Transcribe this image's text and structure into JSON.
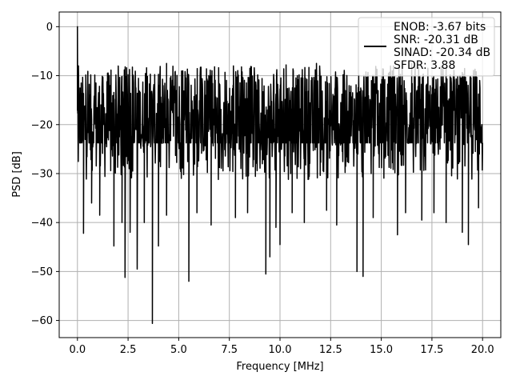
{
  "chart_data": {
    "type": "line",
    "xlabel": "Frequency [MHz]",
    "ylabel": "PSD [dB]",
    "xlim": [
      -0.9,
      20.9
    ],
    "ylim": [
      -63.5,
      3.0
    ],
    "x_ticks": [
      0.0,
      2.5,
      5.0,
      7.5,
      10.0,
      12.5,
      15.0,
      17.5,
      20.0
    ],
    "x_tick_labels": [
      "0.0",
      "2.5",
      "5.0",
      "7.5",
      "10.0",
      "12.5",
      "15.0",
      "17.5",
      "20.0"
    ],
    "y_ticks": [
      0,
      -10,
      -20,
      -30,
      -40,
      -50,
      -60
    ],
    "y_tick_labels": [
      "0",
      "−10",
      "−20",
      "−30",
      "−40",
      "−50",
      "−60"
    ],
    "grid": true,
    "legend_position": "top-right",
    "series_color": "#000000",
    "legend_lines": [
      "ENOB: -3.67 bits",
      "SNR: -20.31 dB",
      "SINAD: -20.34 dB",
      "SFDR: 3.88"
    ],
    "series": [
      {
        "x_start": 0.0,
        "x_end": 20.0,
        "noise_floor_mean": -20.5,
        "noise_upper_envelope": -10.5,
        "noise_lower_envelope": -32.0,
        "peaks": [
          {
            "x": 0.0,
            "y": 0.0
          },
          {
            "x": 0.05,
            "y": -8.0
          },
          {
            "x": 4.4,
            "y": -7.5
          },
          {
            "x": 7.7,
            "y": -8.0
          },
          {
            "x": 10.3,
            "y": -7.8
          },
          {
            "x": 11.8,
            "y": -7.5
          },
          {
            "x": 15.6,
            "y": -8.0
          },
          {
            "x": 16.5,
            "y": -7.5
          }
        ],
        "dips": [
          {
            "x": 0.3,
            "y": -42.2
          },
          {
            "x": 0.7,
            "y": -36.0
          },
          {
            "x": 1.1,
            "y": -38.5
          },
          {
            "x": 1.8,
            "y": -44.8
          },
          {
            "x": 2.2,
            "y": -40.0
          },
          {
            "x": 2.35,
            "y": -51.2
          },
          {
            "x": 2.6,
            "y": -42.0
          },
          {
            "x": 2.95,
            "y": -49.5
          },
          {
            "x": 3.3,
            "y": -40.0
          },
          {
            "x": 3.7,
            "y": -60.6
          },
          {
            "x": 4.0,
            "y": -44.8
          },
          {
            "x": 4.4,
            "y": -38.5
          },
          {
            "x": 5.5,
            "y": -52.0
          },
          {
            "x": 5.9,
            "y": -38.0
          },
          {
            "x": 6.6,
            "y": -40.5
          },
          {
            "x": 7.8,
            "y": -39.0
          },
          {
            "x": 8.4,
            "y": -38.0
          },
          {
            "x": 9.3,
            "y": -50.5
          },
          {
            "x": 9.5,
            "y": -47.0
          },
          {
            "x": 9.8,
            "y": -41.0
          },
          {
            "x": 10.0,
            "y": -44.5
          },
          {
            "x": 10.6,
            "y": -38.0
          },
          {
            "x": 11.2,
            "y": -40.0
          },
          {
            "x": 12.3,
            "y": -37.5
          },
          {
            "x": 12.8,
            "y": -40.5
          },
          {
            "x": 13.8,
            "y": -50.0
          },
          {
            "x": 14.1,
            "y": -51.0
          },
          {
            "x": 14.6,
            "y": -39.0
          },
          {
            "x": 15.8,
            "y": -42.5
          },
          {
            "x": 16.2,
            "y": -38.0
          },
          {
            "x": 17.0,
            "y": -39.5
          },
          {
            "x": 17.6,
            "y": -38.0
          },
          {
            "x": 18.2,
            "y": -40.0
          },
          {
            "x": 19.0,
            "y": -42.0
          },
          {
            "x": 19.3,
            "y": -44.5
          },
          {
            "x": 19.8,
            "y": -37.0
          }
        ]
      }
    ]
  }
}
